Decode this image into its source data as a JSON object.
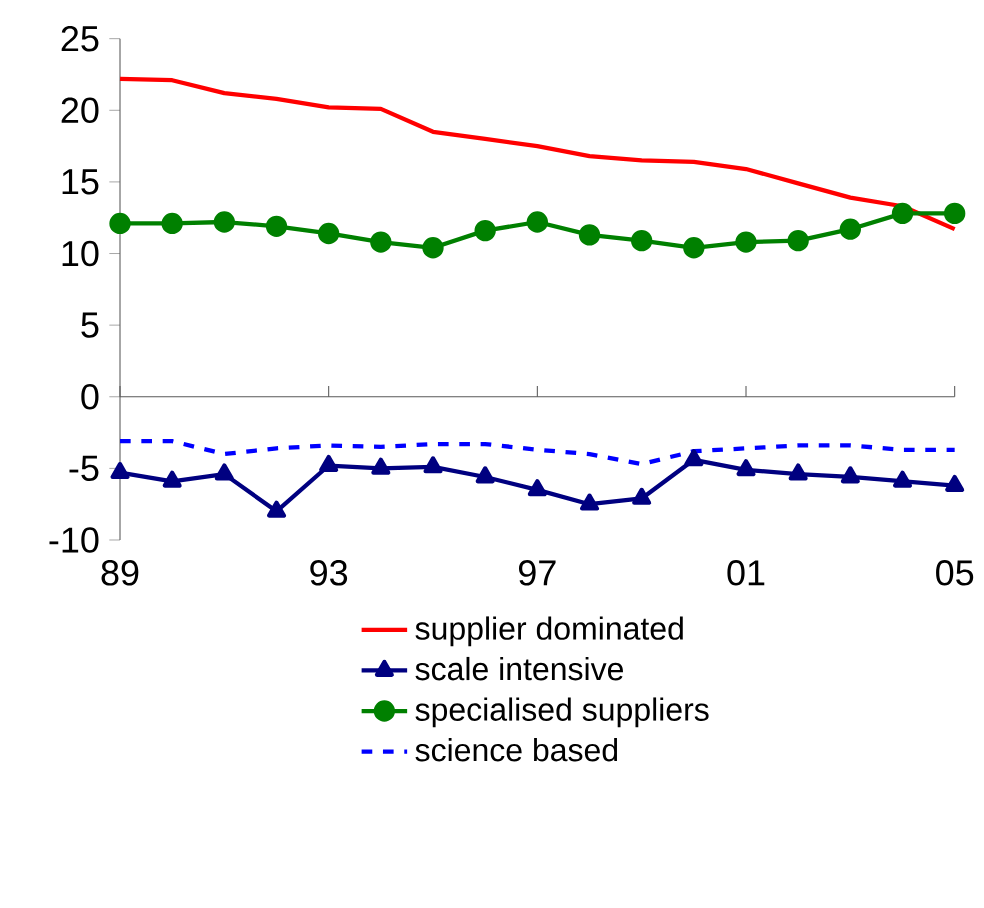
{
  "chart_data": {
    "type": "line",
    "x": [
      1989,
      1990,
      1991,
      1992,
      1993,
      1994,
      1995,
      1996,
      1997,
      1998,
      1999,
      2000,
      2001,
      2002,
      2003,
      2004,
      2005
    ],
    "xlim": [
      1989,
      2005
    ],
    "xticks": [
      {
        "value": 1989,
        "label": "89"
      },
      {
        "value": 1993,
        "label": "93"
      },
      {
        "value": 1997,
        "label": "97"
      },
      {
        "value": 2001,
        "label": "01"
      },
      {
        "value": 2005,
        "label": "05"
      }
    ],
    "ylim": [
      -10,
      25
    ],
    "yticks": [
      -10,
      -5,
      0,
      5,
      10,
      15,
      20,
      25
    ],
    "legend": "bottom",
    "series": [
      {
        "name": "supplier dominated",
        "color": "#ff0000",
        "marker": "none",
        "line_style": "solid",
        "values": [
          22.2,
          22.1,
          21.2,
          20.8,
          20.2,
          20.1,
          18.5,
          18.0,
          17.5,
          16.8,
          16.5,
          16.4,
          15.9,
          14.9,
          13.9,
          13.3,
          11.7
        ]
      },
      {
        "name": "scale intensive",
        "color": "#000080",
        "marker": "triangle",
        "line_style": "solid",
        "values": [
          -5.3,
          -5.9,
          -5.4,
          -8.0,
          -4.8,
          -5.0,
          -4.9,
          -5.6,
          -6.5,
          -7.5,
          -7.1,
          -4.4,
          -5.1,
          -5.4,
          -5.6,
          -5.9,
          -6.2
        ]
      },
      {
        "name": "specialised suppliers",
        "color": "#008000",
        "marker": "circle",
        "line_style": "solid",
        "values": [
          12.1,
          12.1,
          12.2,
          11.9,
          11.4,
          10.8,
          10.4,
          11.6,
          12.2,
          11.3,
          10.9,
          10.4,
          10.8,
          10.9,
          11.7,
          12.8,
          12.8
        ]
      },
      {
        "name": "science based",
        "color": "#0000ff",
        "marker": "none",
        "line_style": "dashed",
        "values": [
          -3.1,
          -3.1,
          -4.0,
          -3.6,
          -3.4,
          -3.5,
          -3.3,
          -3.3,
          -3.7,
          -4.0,
          -4.7,
          -3.8,
          -3.6,
          -3.4,
          -3.4,
          -3.7,
          -3.7
        ]
      }
    ]
  }
}
